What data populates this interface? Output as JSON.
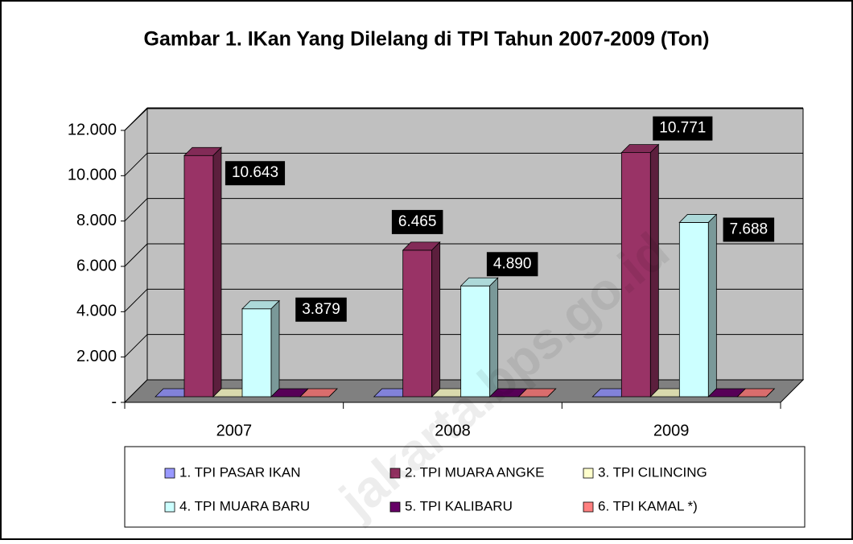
{
  "chart_data": {
    "type": "bar3d",
    "title": "Gambar 1. IKan Yang Dilelang di TPI Tahun 2007-2009 (Ton)",
    "categories": [
      "2007",
      "2008",
      "2009"
    ],
    "series": [
      {
        "name": "1. TPI PASAR IKAN",
        "color": "#9999ff",
        "values": [
          0,
          0,
          0
        ]
      },
      {
        "name": "2. TPI MUARA ANGKE",
        "color": "#993366",
        "values": [
          10643,
          6465,
          10771
        ],
        "value_labels": [
          "10.643",
          "6.465",
          "10.771"
        ]
      },
      {
        "name": "3. TPI CILINCING",
        "color": "#ffffcc",
        "values": [
          0,
          0,
          0
        ]
      },
      {
        "name": "4. TPI MUARA BARU",
        "color": "#ccffff",
        "values": [
          3879,
          4890,
          7688
        ],
        "value_labels": [
          "3.879",
          "4.890",
          "7.688"
        ]
      },
      {
        "name": "5. TPI KALIBARU",
        "color": "#660066",
        "values": [
          0,
          0,
          0
        ]
      },
      {
        "name": "6. TPI KAMAL *)",
        "color": "#ff8080",
        "values": [
          0,
          0,
          0
        ]
      }
    ],
    "ylim": [
      0,
      12000
    ],
    "yticks": [
      {
        "value": 0,
        "label": "-"
      },
      {
        "value": 2000,
        "label": "2.000"
      },
      {
        "value": 4000,
        "label": "4.000"
      },
      {
        "value": 6000,
        "label": "6.000"
      },
      {
        "value": 8000,
        "label": "8.000"
      },
      {
        "value": 10000,
        "label": "10.000"
      },
      {
        "value": 12000,
        "label": "12.000"
      }
    ],
    "grid": true,
    "legend": "bottom",
    "watermark": "jakarta.bps.go.id"
  }
}
